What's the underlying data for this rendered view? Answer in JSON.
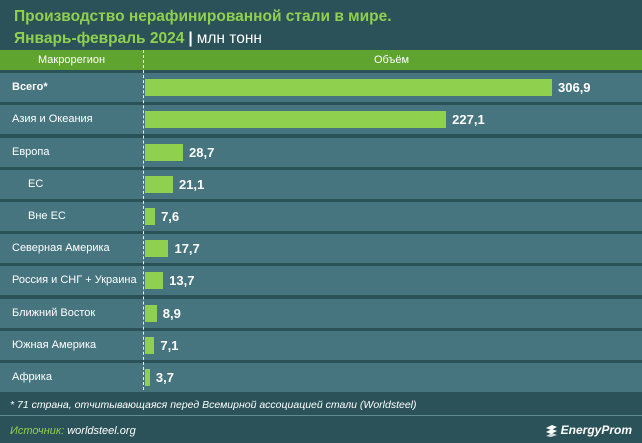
{
  "title": {
    "line1": "Производство нерафинированной стали в мире.",
    "line2": "Январь-февраль 2024",
    "separator": "|",
    "unit": "млн тонн"
  },
  "header": {
    "col_region": "Макрорегион",
    "col_volume": "Объём"
  },
  "chart_data": {
    "type": "bar",
    "orientation": "horizontal",
    "categories": [
      "Всего*",
      "Азия и Океания",
      "Европа",
      "ЕС",
      "Вне ЕС",
      "Северная Америка",
      "Россия и СНГ + Украина",
      "Ближний Восток",
      "Южная Америка",
      "Африка"
    ],
    "values": [
      306.9,
      227.1,
      28.7,
      21.1,
      7.6,
      17.7,
      13.7,
      8.9,
      7.1,
      3.7
    ],
    "value_labels": [
      "306,9",
      "227,1",
      "28,7",
      "21,1",
      "7,6",
      "17,7",
      "13,7",
      "8,9",
      "7,1",
      "3,7"
    ],
    "indented": [
      false,
      false,
      false,
      true,
      true,
      false,
      false,
      false,
      false,
      false
    ],
    "bold_label": [
      true,
      false,
      false,
      false,
      false,
      false,
      false,
      false,
      false,
      false
    ],
    "xlim": [
      0,
      306.9
    ],
    "bar_color": "#8fd14f",
    "row_color": "#467580"
  },
  "footnote": "* 71 страна, отчитывающаяся перед Всемирной ассоциацией стали (Worldsteel)",
  "source": {
    "label": "Источник:",
    "value": "worldsteel.org"
  },
  "logo": {
    "text": "EnergyProm",
    "icon": "energyprom-logo-icon"
  },
  "colors": {
    "background": "#2a5258",
    "accent": "#8fd14f",
    "header": "#5fa42f"
  }
}
